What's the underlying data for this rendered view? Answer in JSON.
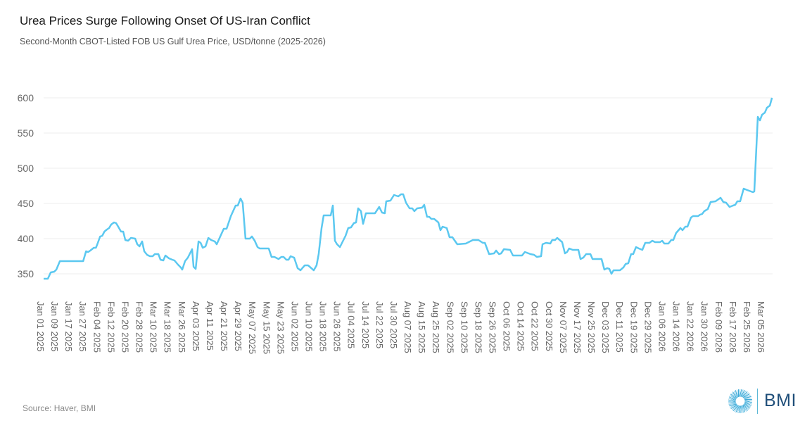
{
  "header": {
    "title": "Urea Prices Surge Following Onset Of US-Iran Conflict",
    "subtitle": "Second-Month CBOT-Listed FOB US Gulf Urea Price, USD/tonne (2025-2026)"
  },
  "footer": {
    "source": "Source: Haver, BMI",
    "logo_text": "BMI"
  },
  "colors": {
    "line": "#5bc8f0",
    "grid": "#eeeeee",
    "axis_text": "#666666",
    "logo_text": "#1f4e79"
  },
  "chart_data": {
    "type": "line",
    "title": "Urea Prices Surge Following Onset Of US-Iran Conflict",
    "subtitle": "Second-Month CBOT-Listed FOB US Gulf Urea Price, USD/tonne (2025-2026)",
    "xlabel": "",
    "ylabel": "",
    "ylim": [
      340,
      600
    ],
    "yticks": [
      350,
      400,
      450,
      500,
      550,
      600
    ],
    "grid": true,
    "legend": "none",
    "x_note": "x positions are in tick-label units: 0 = Jan 01 2025, 51 = Mar 05 2026",
    "xlim": [
      0,
      51.9
    ],
    "tick_labels": [
      "Jan 01 2025",
      "Jan 09 2025",
      "Jan 17 2025",
      "Jan 27 2025",
      "Feb 04 2025",
      "Feb 12 2025",
      "Feb 20 2025",
      "Feb 28 2025",
      "Mar 10 2025",
      "Mar 18 2025",
      "Mar 26 2025",
      "Apr 03 2025",
      "Apr 11 2025",
      "Apr 21 2025",
      "Apr 29 2025",
      "May 07 2025",
      "May 15 2025",
      "May 23 2025",
      "Jun 02 2025",
      "Jun 10 2025",
      "Jun 18 2025",
      "Jun 26 2025",
      "Jul 04 2025",
      "Jul 14 2025",
      "Jul 22 2025",
      "Jul 30 2025",
      "Aug 07 2025",
      "Aug 15 2025",
      "Aug 25 2025",
      "Sep 02 2025",
      "Sep 10 2025",
      "Sep 18 2025",
      "Sep 26 2025",
      "Oct 06 2025",
      "Oct 14 2025",
      "Oct 22 2025",
      "Oct 30 2025",
      "Nov 07 2025",
      "Nov 17 2025",
      "Nov 25 2025",
      "Dec 03 2025",
      "Dec 11 2025",
      "Dec 19 2025",
      "Dec 29 2025",
      "Jan 06 2026",
      "Jan 14 2026",
      "Jan 22 2026",
      "Jan 30 2026",
      "Feb 09 2026",
      "Feb 17 2026",
      "Feb 25 2026",
      "Mar 05 2026"
    ],
    "series": [
      {
        "name": "FOB US Gulf Urea Price (USD/tonne)",
        "points": [
          [
            0.25,
            343
          ],
          [
            0.55,
            343
          ],
          [
            0.75,
            352
          ],
          [
            1.0,
            353
          ],
          [
            1.15,
            356
          ],
          [
            1.4,
            368
          ],
          [
            3.05,
            368
          ],
          [
            3.25,
            382
          ],
          [
            3.4,
            381
          ],
          [
            3.55,
            383
          ],
          [
            3.8,
            387
          ],
          [
            3.95,
            387
          ],
          [
            4.05,
            392
          ],
          [
            4.25,
            403
          ],
          [
            4.4,
            404
          ],
          [
            4.55,
            410
          ],
          [
            4.73,
            413
          ],
          [
            4.88,
            415
          ],
          [
            5.03,
            420
          ],
          [
            5.23,
            423
          ],
          [
            5.38,
            422
          ],
          [
            5.53,
            417
          ],
          [
            5.73,
            410
          ],
          [
            5.88,
            410
          ],
          [
            6.03,
            398
          ],
          [
            6.23,
            397
          ],
          [
            6.43,
            401
          ],
          [
            6.73,
            400
          ],
          [
            6.88,
            392
          ],
          [
            7.03,
            389
          ],
          [
            7.22,
            396
          ],
          [
            7.37,
            382
          ],
          [
            7.57,
            377
          ],
          [
            7.77,
            375
          ],
          [
            7.97,
            375
          ],
          [
            8.12,
            378
          ],
          [
            8.37,
            378
          ],
          [
            8.52,
            370
          ],
          [
            8.72,
            369
          ],
          [
            8.87,
            376
          ],
          [
            9.12,
            372
          ],
          [
            9.36,
            370
          ],
          [
            9.51,
            369
          ],
          [
            9.76,
            363
          ],
          [
            9.96,
            359
          ],
          [
            10.06,
            356
          ],
          [
            10.26,
            368
          ],
          [
            10.46,
            373
          ],
          [
            10.61,
            379
          ],
          [
            10.76,
            385
          ],
          [
            10.86,
            360
          ],
          [
            11.01,
            357
          ],
          [
            11.21,
            396
          ],
          [
            11.36,
            394
          ],
          [
            11.51,
            387
          ],
          [
            11.71,
            389
          ],
          [
            11.91,
            401
          ],
          [
            12.11,
            398
          ],
          [
            12.36,
            396
          ],
          [
            12.5,
            392
          ],
          [
            12.75,
            403
          ],
          [
            13.0,
            414
          ],
          [
            13.2,
            414
          ],
          [
            13.5,
            432
          ],
          [
            13.84,
            447
          ],
          [
            13.99,
            447
          ],
          [
            14.19,
            457
          ],
          [
            14.34,
            451
          ],
          [
            14.54,
            400
          ],
          [
            14.84,
            400
          ],
          [
            14.99,
            403
          ],
          [
            15.19,
            397
          ],
          [
            15.39,
            388
          ],
          [
            15.54,
            386
          ],
          [
            16.18,
            386
          ],
          [
            16.38,
            374
          ],
          [
            16.58,
            374
          ],
          [
            16.88,
            371
          ],
          [
            17.08,
            374
          ],
          [
            17.23,
            374
          ],
          [
            17.43,
            370
          ],
          [
            17.58,
            370
          ],
          [
            17.73,
            375
          ],
          [
            17.98,
            373
          ],
          [
            18.23,
            358
          ],
          [
            18.43,
            355
          ],
          [
            18.73,
            362
          ],
          [
            18.97,
            362
          ],
          [
            19.37,
            355
          ],
          [
            19.57,
            362
          ],
          [
            19.72,
            378
          ],
          [
            19.92,
            415
          ],
          [
            20.07,
            433
          ],
          [
            20.57,
            433
          ],
          [
            20.72,
            447
          ],
          [
            20.87,
            397
          ],
          [
            21.02,
            392
          ],
          [
            21.22,
            388
          ],
          [
            21.47,
            398
          ],
          [
            21.62,
            404
          ],
          [
            21.81,
            415
          ],
          [
            22.01,
            416
          ],
          [
            22.21,
            422
          ],
          [
            22.36,
            423
          ],
          [
            22.51,
            443
          ],
          [
            22.71,
            439
          ],
          [
            22.86,
            421
          ],
          [
            23.06,
            436
          ],
          [
            23.7,
            436
          ],
          [
            24.0,
            445
          ],
          [
            24.2,
            437
          ],
          [
            24.4,
            436
          ],
          [
            24.5,
            453
          ],
          [
            24.8,
            454
          ],
          [
            25.05,
            462
          ],
          [
            25.35,
            460
          ],
          [
            25.55,
            463
          ],
          [
            25.7,
            463
          ],
          [
            25.9,
            451
          ],
          [
            26.15,
            443
          ],
          [
            26.34,
            443
          ],
          [
            26.49,
            439
          ],
          [
            26.69,
            443
          ],
          [
            27.04,
            444
          ],
          [
            27.19,
            448
          ],
          [
            27.39,
            431
          ],
          [
            27.54,
            431
          ],
          [
            27.69,
            428
          ],
          [
            27.89,
            428
          ],
          [
            28.19,
            423
          ],
          [
            28.34,
            412
          ],
          [
            28.49,
            417
          ],
          [
            28.78,
            415
          ],
          [
            28.98,
            402
          ],
          [
            29.18,
            402
          ],
          [
            29.53,
            392
          ],
          [
            30.13,
            393
          ],
          [
            30.63,
            398
          ],
          [
            31.03,
            398
          ],
          [
            31.33,
            394
          ],
          [
            31.48,
            394
          ],
          [
            31.78,
            378
          ],
          [
            32.13,
            379
          ],
          [
            32.28,
            383
          ],
          [
            32.48,
            378
          ],
          [
            32.63,
            379
          ],
          [
            32.83,
            385
          ],
          [
            33.27,
            384
          ],
          [
            33.47,
            376
          ],
          [
            34.11,
            376
          ],
          [
            34.31,
            381
          ],
          [
            34.71,
            378
          ],
          [
            34.96,
            377
          ],
          [
            35.16,
            374
          ],
          [
            35.46,
            375
          ],
          [
            35.56,
            392
          ],
          [
            35.81,
            394
          ],
          [
            36.11,
            393
          ],
          [
            36.25,
            398
          ],
          [
            36.45,
            398
          ],
          [
            36.6,
            401
          ],
          [
            36.95,
            395
          ],
          [
            37.15,
            379
          ],
          [
            37.3,
            381
          ],
          [
            37.45,
            386
          ],
          [
            37.7,
            384
          ],
          [
            38.1,
            384
          ],
          [
            38.25,
            371
          ],
          [
            38.45,
            373
          ],
          [
            38.65,
            378
          ],
          [
            38.95,
            378
          ],
          [
            39.1,
            371
          ],
          [
            39.74,
            371
          ],
          [
            39.94,
            356
          ],
          [
            40.14,
            358
          ],
          [
            40.29,
            357
          ],
          [
            40.44,
            350
          ],
          [
            40.59,
            355
          ],
          [
            41.04,
            355
          ],
          [
            41.29,
            359
          ],
          [
            41.44,
            364
          ],
          [
            41.63,
            365
          ],
          [
            41.83,
            378
          ],
          [
            41.98,
            378
          ],
          [
            42.18,
            388
          ],
          [
            42.38,
            386
          ],
          [
            42.63,
            384
          ],
          [
            42.83,
            394
          ],
          [
            43.13,
            394
          ],
          [
            43.33,
            397
          ],
          [
            43.53,
            395
          ],
          [
            43.88,
            395
          ],
          [
            44.03,
            397
          ],
          [
            44.18,
            393
          ],
          [
            44.47,
            393
          ],
          [
            44.67,
            398
          ],
          [
            44.82,
            398
          ],
          [
            45.02,
            408
          ],
          [
            45.32,
            415
          ],
          [
            45.47,
            412
          ],
          [
            45.67,
            417
          ],
          [
            45.82,
            417
          ],
          [
            46.07,
            430
          ],
          [
            46.22,
            432
          ],
          [
            46.57,
            432
          ],
          [
            46.71,
            434
          ],
          [
            46.86,
            435
          ],
          [
            47.01,
            439
          ],
          [
            47.26,
            442
          ],
          [
            47.46,
            452
          ],
          [
            47.81,
            453
          ],
          [
            48.16,
            458
          ],
          [
            48.36,
            452
          ],
          [
            48.56,
            451
          ],
          [
            48.8,
            445
          ],
          [
            49.05,
            447
          ],
          [
            49.2,
            448
          ],
          [
            49.35,
            453
          ],
          [
            49.55,
            453
          ],
          [
            49.8,
            471
          ],
          [
            50.05,
            469
          ],
          [
            50.45,
            466
          ],
          [
            50.55,
            467
          ],
          [
            50.8,
            573
          ],
          [
            50.95,
            568
          ],
          [
            51.1,
            576
          ],
          [
            51.3,
            579
          ],
          [
            51.45,
            586
          ],
          [
            51.65,
            589
          ],
          [
            51.8,
            600
          ]
        ]
      }
    ]
  }
}
